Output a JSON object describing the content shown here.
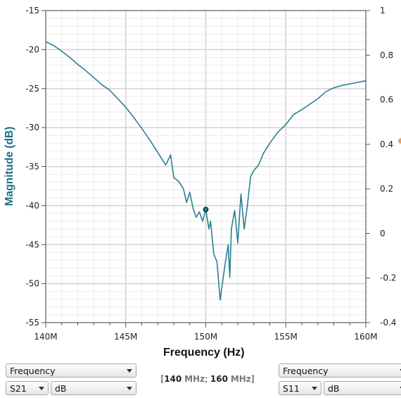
{
  "chart_data": {
    "type": "line",
    "xlabel": "Frequency (Hz)",
    "ylabel": "Magnitude (dB)",
    "xlim": [
      140,
      160
    ],
    "ylim": [
      -55,
      -15
    ],
    "y2lim": [
      -0.4,
      1
    ],
    "x_ticks": [
      "140M",
      "145M",
      "150M",
      "155M",
      "160M"
    ],
    "y_ticks": [
      "-15",
      "-20",
      "-25",
      "-30",
      "-35",
      "-40",
      "-45",
      "-50",
      "-55"
    ],
    "y2_ticks": [
      "1",
      "0.8",
      "0.6",
      "0.4",
      "0.2",
      "0",
      "-0.2",
      "-0.4"
    ],
    "grid": true,
    "colors": {
      "trace": "#2a7f96",
      "axis_label": "#1a6e86"
    },
    "marker": {
      "x": 150.0,
      "y": -40.5
    },
    "series": [
      {
        "x": [
          140.0,
          140.5,
          141.0,
          141.5,
          142.0,
          142.5,
          143.0,
          143.5,
          144.0,
          144.5,
          145.0,
          145.5,
          146.0,
          146.5,
          147.0,
          147.5,
          147.8,
          148.0,
          148.3,
          148.6,
          148.8,
          149.0,
          149.2,
          149.4,
          149.6,
          149.8,
          150.0,
          150.2,
          150.3,
          150.5,
          150.7,
          150.9,
          151.0,
          151.2,
          151.4,
          151.5,
          151.6,
          151.8,
          152.0,
          152.2,
          152.4,
          152.6,
          152.8,
          153.0,
          153.3,
          153.6,
          154.0,
          154.5,
          155.0,
          155.5,
          156.0,
          156.5,
          157.0,
          157.5,
          158.0,
          158.5,
          159.0,
          159.5,
          160.0
        ],
        "values": [
          -19.0,
          -19.5,
          -20.2,
          -21.0,
          -21.9,
          -22.7,
          -23.6,
          -24.5,
          -25.2,
          -26.3,
          -27.4,
          -28.7,
          -30.1,
          -31.6,
          -33.2,
          -34.8,
          -33.5,
          -36.4,
          -36.9,
          -37.8,
          -39.6,
          -38.3,
          -40.3,
          -41.5,
          -40.8,
          -42.0,
          -40.5,
          -43.0,
          -42.0,
          -46.2,
          -47.2,
          -52.1,
          -50.5,
          -47.6,
          -45.0,
          -49.2,
          -43.0,
          -40.6,
          -44.8,
          -38.5,
          -43.0,
          -40.0,
          -36.3,
          -35.5,
          -34.8,
          -33.3,
          -32.0,
          -30.6,
          -29.6,
          -28.3,
          -27.7,
          -27.0,
          -26.3,
          -25.4,
          -24.9,
          -24.6,
          -24.4,
          -24.2,
          -24.0
        ]
      }
    ]
  },
  "controls": {
    "left": {
      "param": "Frequency",
      "measure": "S21",
      "format": "dB"
    },
    "right": {
      "param": "Frequency",
      "measure": "S11",
      "format": "dB"
    }
  },
  "range": {
    "start_value": "140",
    "start_unit": "MHz",
    "stop_value": "160",
    "stop_unit": "MHz"
  }
}
